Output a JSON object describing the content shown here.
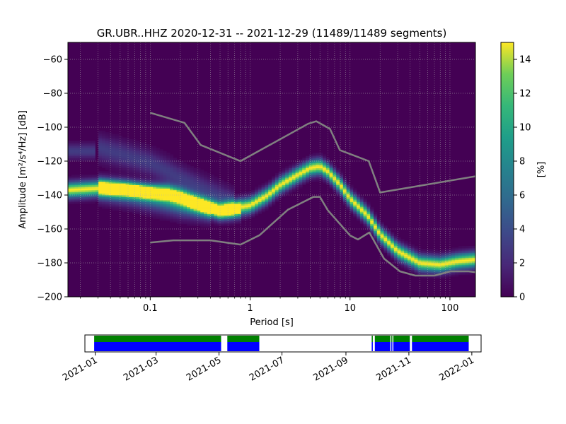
{
  "chart_data": {
    "type": "heatmap",
    "title": "GR.UBR..HHZ   2020-12-31 -- 2021-12-29  (11489/11489 segments)",
    "xlabel": "Period [s]",
    "ylabel": "Amplitude [m²/s⁴/Hz] [dB]",
    "x_scale": "log",
    "xlim": [
      0.015,
      180
    ],
    "ylim": [
      -200,
      -50
    ],
    "x_ticks": [
      0.1,
      1,
      10,
      100
    ],
    "x_tick_labels": [
      "0.1",
      "1",
      "10",
      "100"
    ],
    "y_ticks": [
      -200,
      -180,
      -160,
      -140,
      -120,
      -100,
      -80,
      -60
    ],
    "y_tick_labels": [
      "−200",
      "−180",
      "−160",
      "−140",
      "−120",
      "−100",
      "−80",
      "−60"
    ],
    "grid": true,
    "colormap": "viridis",
    "colorbar": {
      "label": "[%]",
      "range": [
        0,
        15
      ],
      "ticks": [
        0,
        2,
        4,
        6,
        8,
        10,
        12,
        14
      ],
      "tick_labels": [
        "0",
        "2",
        "4",
        "6",
        "8",
        "10",
        "12",
        "14"
      ]
    },
    "density_ridges": [
      {
        "points": [
          [
            0.015,
            -137
          ],
          [
            0.03,
            -136
          ],
          [
            0.06,
            -137
          ],
          [
            0.1,
            -138
          ],
          [
            0.15,
            -138
          ],
          [
            0.2,
            -140
          ],
          [
            0.3,
            -144
          ],
          [
            0.5,
            -149
          ],
          [
            0.8,
            -147
          ],
          [
            1.0,
            -146
          ],
          [
            1.5,
            -140
          ],
          [
            2.0,
            -134
          ],
          [
            3.0,
            -128
          ],
          [
            4.0,
            -124
          ],
          [
            5.0,
            -123
          ],
          [
            6.0,
            -126
          ],
          [
            8.0,
            -134
          ],
          [
            10,
            -142
          ],
          [
            15,
            -152
          ],
          [
            20,
            -163
          ],
          [
            30,
            -173
          ],
          [
            50,
            -180
          ],
          [
            80,
            -181
          ],
          [
            120,
            -179
          ],
          [
            180,
            -178
          ]
        ],
        "peak": 15,
        "width_db": 3
      },
      {
        "points": [
          [
            0.03,
            -134
          ],
          [
            0.06,
            -136
          ],
          [
            0.1,
            -139
          ],
          [
            0.2,
            -144
          ],
          [
            0.3,
            -147
          ],
          [
            0.5,
            -150
          ],
          [
            0.8,
            -149
          ]
        ],
        "peak": 8,
        "width_db": 3
      },
      {
        "points": [
          [
            0.03,
            -112
          ],
          [
            0.06,
            -117
          ],
          [
            0.1,
            -121
          ],
          [
            0.15,
            -126
          ],
          [
            0.2,
            -130
          ],
          [
            0.3,
            -135
          ],
          [
            0.5,
            -141
          ],
          [
            0.7,
            -145
          ]
        ],
        "peak": 3,
        "width_db": 5
      },
      {
        "points": [
          [
            0.015,
            -114
          ],
          [
            0.028,
            -114
          ]
        ],
        "peak": 3,
        "width_db": 3
      },
      {
        "points": [
          [
            0.03,
            -138
          ],
          [
            0.06,
            -141
          ],
          [
            0.1,
            -144
          ],
          [
            0.2,
            -148
          ],
          [
            0.4,
            -150
          ]
        ],
        "peak": 4,
        "width_db": 4
      }
    ],
    "noise_models": [
      {
        "name": "NHNM",
        "points": [
          [
            0.1,
            -91.5
          ],
          [
            0.22,
            -97.4
          ],
          [
            0.32,
            -110.5
          ],
          [
            0.8,
            -120
          ],
          [
            3.8,
            -98
          ],
          [
            4.6,
            -96.5
          ],
          [
            6.3,
            -101
          ],
          [
            7.9,
            -113.5
          ],
          [
            15.4,
            -120
          ],
          [
            20,
            -138.5
          ],
          [
            354,
            -126
          ]
        ]
      },
      {
        "name": "NLNM",
        "points": [
          [
            0.1,
            -168
          ],
          [
            0.17,
            -166.7
          ],
          [
            0.4,
            -166.7
          ],
          [
            0.8,
            -169.2
          ],
          [
            1.24,
            -163.7
          ],
          [
            2.4,
            -148.6
          ],
          [
            4.3,
            -141.1
          ],
          [
            5,
            -141.1
          ],
          [
            6,
            -149
          ],
          [
            10,
            -163.8
          ],
          [
            12,
            -166.2
          ],
          [
            15.6,
            -162.1
          ],
          [
            21.9,
            -177.5
          ],
          [
            31.6,
            -185
          ],
          [
            45,
            -187.5
          ],
          [
            70,
            -187.5
          ],
          [
            101,
            -185
          ],
          [
            154,
            -185
          ],
          [
            328,
            -187.5
          ]
        ]
      }
    ],
    "availability": {
      "x_ticks": [
        "2021-01",
        "2021-03",
        "2021-05",
        "2021-07",
        "2021-09",
        "2021-11",
        "2022-01"
      ],
      "xlim": [
        "2020-12-22",
        "2022-01-10"
      ],
      "segments": [
        {
          "start": "2020-12-31",
          "end": "2021-05-03"
        },
        {
          "start": "2021-05-09",
          "end": "2021-06-09"
        },
        {
          "start": "2021-09-26",
          "end": "2021-09-27"
        },
        {
          "start": "2021-09-29",
          "end": "2021-10-14"
        },
        {
          "start": "2021-10-15",
          "end": "2021-10-16"
        },
        {
          "start": "2021-10-17",
          "end": "2021-11-02"
        },
        {
          "start": "2021-11-04",
          "end": "2021-12-29"
        }
      ],
      "colors": {
        "top": "#008000",
        "bottom": "#0000ff"
      }
    }
  }
}
